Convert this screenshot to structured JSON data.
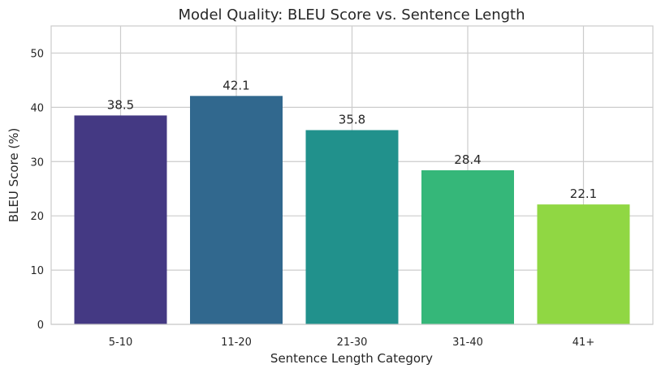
{
  "chart_data": {
    "type": "bar",
    "title": "Model Quality: BLEU Score vs. Sentence Length",
    "xlabel": "Sentence Length Category",
    "ylabel": "BLEU Score (%)",
    "categories": [
      "5-10",
      "11-20",
      "21-30",
      "31-40",
      "41+"
    ],
    "values": [
      38.5,
      42.1,
      35.8,
      28.4,
      22.1
    ],
    "data_labels": [
      "38.5",
      "42.1",
      "35.8",
      "28.4",
      "22.1"
    ],
    "colors": [
      "#443983",
      "#31688e",
      "#21918c",
      "#35b779",
      "#90d743"
    ],
    "ylim": [
      0,
      55
    ],
    "yticks": [
      0,
      10,
      20,
      30,
      40,
      50
    ],
    "ytick_labels": [
      "0",
      "10",
      "20",
      "30",
      "40",
      "50"
    ],
    "grid": true,
    "legend": "none"
  }
}
